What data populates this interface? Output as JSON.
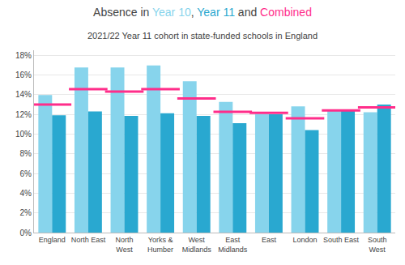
{
  "chart_data": {
    "type": "bar",
    "title": "Absence in Year 10, Year 11 and Combined",
    "subtitle": "2021/22 Year 11 cohort in state-funded schools in England",
    "categories": [
      "England",
      "North East",
      "North\nWest",
      "Yorks &\nHumber",
      "West\nMidlands",
      "East\nMidlands",
      "East",
      "London",
      "South East",
      "South\nWest"
    ],
    "series": [
      {
        "name": "Year 10",
        "color": "#87d4ec",
        "values": [
          13.95,
          16.75,
          16.75,
          16.95,
          15.35,
          13.25,
          12.05,
          12.8,
          12.4,
          12.2
        ]
      },
      {
        "name": "Year 11",
        "color": "#29a8d0",
        "values": [
          11.9,
          12.3,
          11.85,
          12.1,
          11.85,
          11.1,
          12.0,
          10.4,
          12.45,
          13.0
        ]
      },
      {
        "name": "Combined",
        "color": "#ff2d8a",
        "type": "scatter",
        "marker": "line-ew",
        "values": [
          13.0,
          14.55,
          14.3,
          14.55,
          13.6,
          12.25,
          12.15,
          11.6,
          12.4,
          12.7
        ]
      }
    ],
    "ylim": [
      0,
      18.5
    ],
    "yticks": [
      {
        "value": 0,
        "label": "0%"
      },
      {
        "value": 2,
        "label": "2%"
      },
      {
        "value": 4,
        "label": "4%"
      },
      {
        "value": 6,
        "label": "6%"
      },
      {
        "value": 8,
        "label": "8%"
      },
      {
        "value": 10,
        "label": "10%"
      },
      {
        "value": 12,
        "label": "12%"
      },
      {
        "value": 14,
        "label": "14%"
      },
      {
        "value": 16,
        "label": "16%"
      },
      {
        "value": 18,
        "label": "18%"
      }
    ],
    "grid": true
  }
}
